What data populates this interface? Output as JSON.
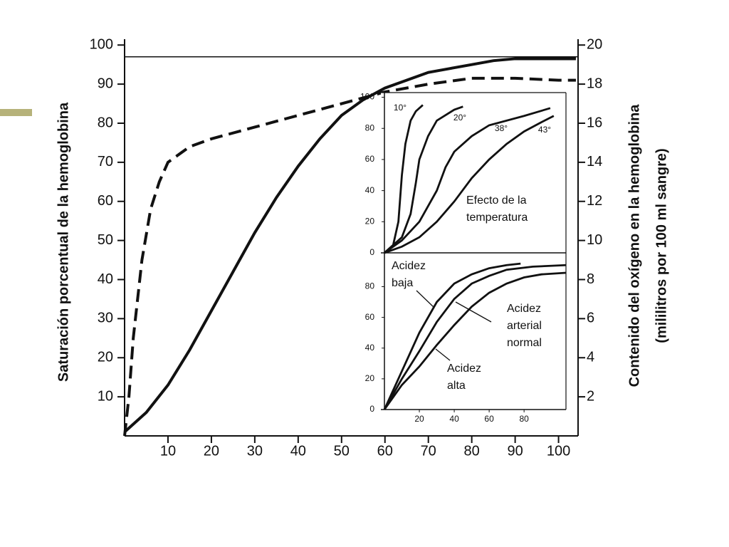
{
  "chart_data": [
    {
      "type": "line",
      "ylabel": "Saturación porcentual de la hemoglobina",
      "y2label": [
        "Contenido del oxígeno en la hemoglobina",
        "(mililitros por 100 ml sangre)"
      ],
      "xlim": [
        0,
        104.5
      ],
      "ylim": [
        0,
        101.5
      ],
      "y2lim": [
        0,
        20.3
      ],
      "xticks": [
        10,
        20,
        30,
        40,
        50,
        60,
        70,
        80,
        90,
        100
      ],
      "yticks": [
        10,
        20,
        30,
        40,
        50,
        60,
        70,
        80,
        90,
        100
      ],
      "y2ticks": [
        2,
        4,
        6,
        8,
        10,
        12,
        14,
        16,
        18,
        20
      ],
      "hline": 97,
      "series": [
        {
          "color": "#111111",
          "dashed": false,
          "x": [
            0,
            5,
            10,
            15,
            20,
            25,
            30,
            35,
            40,
            45,
            50,
            55,
            60,
            65,
            70,
            75,
            80,
            85,
            90,
            95,
            100,
            104
          ],
          "values": [
            1,
            6,
            13,
            22,
            32,
            42,
            52,
            61,
            69,
            76,
            82,
            86,
            89,
            91,
            93,
            94,
            95,
            96,
            96.5,
            96.5,
            96.5,
            96.5
          ]
        },
        {
          "color": "#111111",
          "dashed": true,
          "x": [
            0,
            1,
            2,
            4,
            6,
            8,
            10,
            15,
            20,
            30,
            40,
            50,
            60,
            70,
            80,
            90,
            100,
            104
          ],
          "values": [
            0,
            10,
            25,
            45,
            58,
            65,
            70,
            74,
            76,
            79,
            82,
            85,
            88,
            90,
            91.5,
            91.5,
            91,
            91
          ]
        }
      ]
    },
    {
      "type": "line",
      "xlim": [
        0,
        104
      ],
      "ylim": [
        0,
        103
      ],
      "yticks": [
        0,
        20,
        40,
        60,
        80,
        100
      ],
      "annotations": [
        [
          "Efecto de la",
          "temperatura"
        ]
      ],
      "series": [
        {
          "name": "10°",
          "color": "#111111",
          "x": [
            0,
            5,
            8,
            10,
            12,
            15,
            18,
            22
          ],
          "values": [
            0,
            5,
            20,
            50,
            70,
            85,
            91,
            95
          ]
        },
        {
          "name": "20°",
          "color": "#111111",
          "x": [
            0,
            10,
            15,
            18,
            20,
            25,
            30,
            40,
            45
          ],
          "values": [
            0,
            10,
            25,
            45,
            60,
            75,
            85,
            92,
            94
          ]
        },
        {
          "name": "38°",
          "color": "#111111",
          "x": [
            0,
            10,
            20,
            30,
            35,
            40,
            50,
            60,
            80,
            95
          ],
          "values": [
            0,
            8,
            20,
            40,
            55,
            65,
            75,
            82,
            88,
            93
          ]
        },
        {
          "name": "43°",
          "color": "#111111",
          "x": [
            0,
            10,
            20,
            30,
            40,
            50,
            60,
            70,
            80,
            90,
            97
          ],
          "values": [
            0,
            4,
            10,
            20,
            33,
            48,
            60,
            70,
            78,
            84,
            88
          ]
        }
      ]
    },
    {
      "type": "line",
      "xlim": [
        0,
        104
      ],
      "ylim": [
        0,
        102
      ],
      "xticks": [
        20,
        40,
        60,
        80
      ],
      "yticks": [
        0,
        20,
        40,
        60,
        80
      ],
      "annotations": [
        [
          "Acidez",
          "baja"
        ],
        [
          "Acidez",
          "arterial",
          "normal"
        ],
        [
          "Acidez",
          "alta"
        ]
      ],
      "series": [
        {
          "color": "#111111",
          "x": [
            0,
            10,
            20,
            30,
            40,
            50,
            60,
            70,
            78
          ],
          "values": [
            0,
            25,
            50,
            70,
            82,
            88,
            92,
            94,
            95
          ]
        },
        {
          "color": "#111111",
          "x": [
            0,
            10,
            20,
            30,
            40,
            50,
            60,
            70,
            85,
            104
          ],
          "values": [
            0,
            20,
            38,
            57,
            72,
            82,
            87,
            91,
            93,
            94
          ]
        },
        {
          "color": "#111111",
          "x": [
            0,
            10,
            20,
            30,
            40,
            50,
            60,
            70,
            80,
            90,
            104
          ],
          "values": [
            0,
            16,
            28,
            42,
            55,
            67,
            76,
            82,
            86,
            88,
            89
          ]
        }
      ]
    }
  ]
}
